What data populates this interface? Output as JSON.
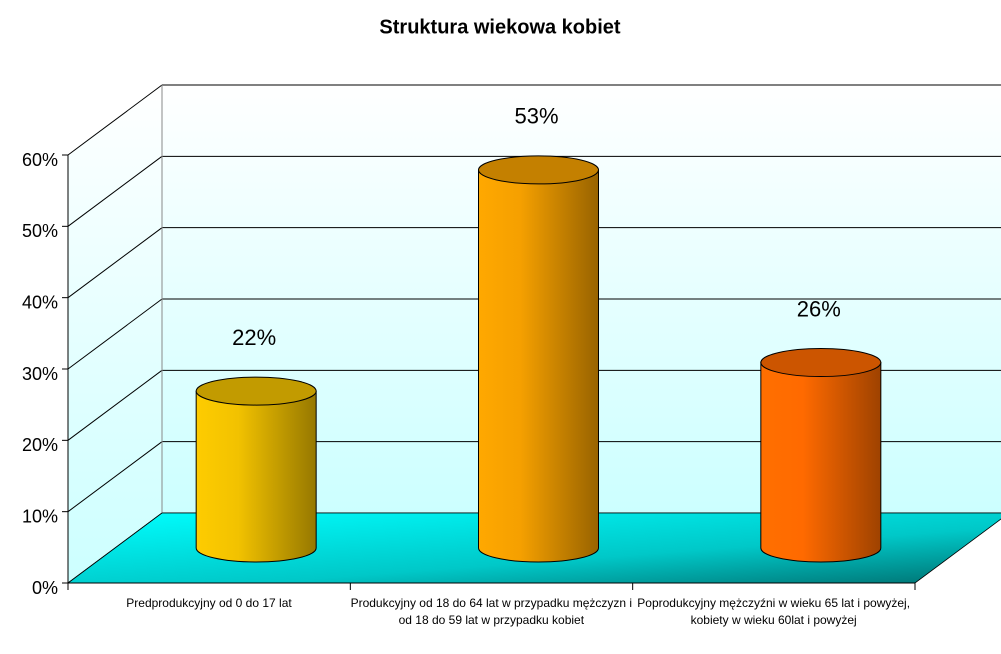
{
  "chart_data": {
    "type": "bar3d",
    "title": "Struktura wiekowa kobiet",
    "categories": [
      "Predprodukcyjny od 0 do 17 lat",
      "Produkcyjny od 18 do 64 lat w przypadku mężczyzn i od 18 do 59 lat w przypadku kobiet",
      "Poprodukcyjny mężczyźni w wieku 65 lat i powyżej, kobiety w wieku 60lat i powyżej"
    ],
    "values": [
      22,
      53,
      26
    ],
    "value_labels": [
      "22%",
      "53%",
      "26%"
    ],
    "colors": [
      "#f2c200",
      "#f5a000",
      "#ff6a00"
    ],
    "ylim": [
      0,
      60
    ],
    "yticks": [
      {
        "value": 0,
        "label": "0%"
      },
      {
        "value": 10,
        "label": "10%"
      },
      {
        "value": 20,
        "label": "20%"
      },
      {
        "value": 30,
        "label": "30%"
      },
      {
        "value": 40,
        "label": "40%"
      },
      {
        "value": 50,
        "label": "50%"
      },
      {
        "value": 60,
        "label": "60%"
      }
    ],
    "grid": true
  }
}
